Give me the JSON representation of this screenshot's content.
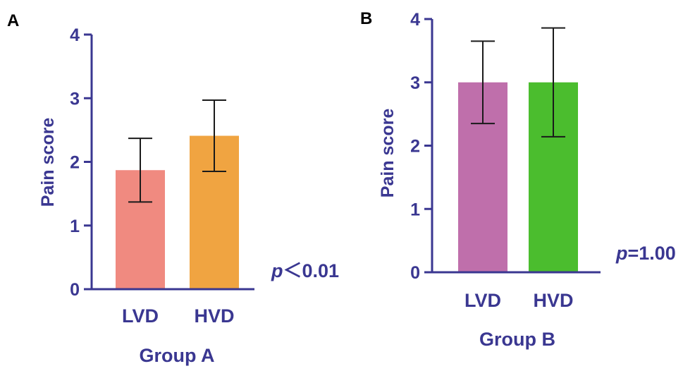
{
  "colors": {
    "axis": "#3a3791",
    "error_bar": "#1a1a1a",
    "panel_letter": "#000000"
  },
  "chart_data": [
    {
      "type": "bar",
      "panel_label": "A",
      "categories": [
        "LVD",
        "HVD"
      ],
      "values": [
        1.87,
        2.41
      ],
      "error": [
        0.5,
        0.56
      ],
      "colors": [
        "#f08a80",
        "#f0a441"
      ],
      "ylabel": "Pain score",
      "xlabel": "Group A",
      "ylim": [
        0,
        4
      ],
      "yticks": [
        0,
        1,
        2,
        3,
        4
      ],
      "annotation_italic": "p",
      "annotation_rest": "＜0.01",
      "grid": false
    },
    {
      "type": "bar",
      "panel_label": "B",
      "categories": [
        "LVD",
        "HVD"
      ],
      "values": [
        3.0,
        3.0
      ],
      "error": [
        0.65,
        0.86
      ],
      "colors": [
        "#bf6fab",
        "#4bbd2e"
      ],
      "ylabel": "Pain score",
      "xlabel": "Group B",
      "ylim": [
        0,
        4
      ],
      "yticks": [
        0,
        1,
        2,
        3,
        4
      ],
      "annotation_italic": "p",
      "annotation_rest": "=1.00",
      "grid": false
    }
  ]
}
